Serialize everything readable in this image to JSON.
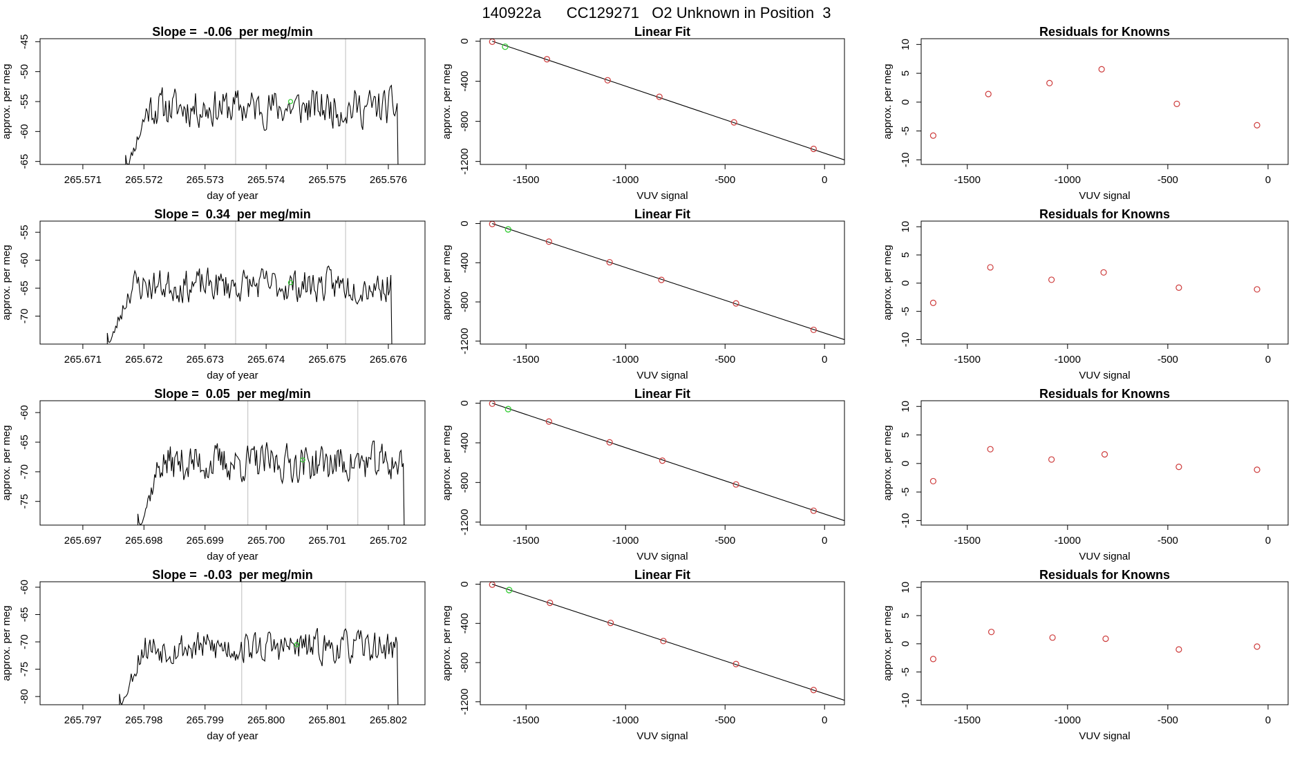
{
  "page_title": "140922a      CC129271   O2 Unknown in Position  3",
  "colors": {
    "trace": "#000000",
    "known": "#cd3a3a",
    "unknown": "#33cc33",
    "vline": "#c8c8c8"
  },
  "chart_data": [
    {
      "type": "line",
      "panel": "timeseries",
      "title": "Slope =  -0.06  per meg/min",
      "xlabel": "day of year",
      "ylabel": "approx. per meg",
      "xlim": [
        265.5703,
        265.5766
      ],
      "ylim": [
        -65.5,
        -44.5
      ],
      "xticks": [
        265.571,
        265.572,
        265.573,
        265.574,
        265.575,
        265.576
      ],
      "xtick_labels": [
        "265.571",
        "265.572",
        "265.573",
        "265.574",
        "265.575",
        "265.576"
      ],
      "yticks": [
        -65,
        -60,
        -55,
        -50,
        -45
      ],
      "yticks_labels": [
        "-65",
        "-60",
        "-55",
        "-50",
        "-45"
      ],
      "data_start": 265.5717,
      "data_end": 265.5762,
      "trace_mean": -56,
      "trace_amplitude": 3.2,
      "vlines": [
        265.5735,
        265.5753
      ],
      "unknown_point": {
        "x": 265.5744,
        "y": -55
      },
      "seed": 11
    },
    {
      "type": "scatter",
      "panel": "linear_fit",
      "title": "Linear Fit",
      "xlabel": "VUV signal",
      "ylabel": "approx. per meg",
      "xlim": [
        -1730,
        100
      ],
      "ylim": [
        -1230,
        25
      ],
      "xticks": [
        -1500,
        -1000,
        -500,
        0
      ],
      "xtick_labels": [
        "-1500",
        "-1000",
        "-500",
        "0"
      ],
      "yticks": [
        0,
        -400,
        -800,
        -1200
      ],
      "ytick_labels": [
        "0",
        "-400",
        "-800",
        "-1200"
      ],
      "fit_line": [
        [
          -1670,
          0
        ],
        [
          100,
          -1185
        ]
      ],
      "knowns": [
        [
          -1670,
          -5
        ],
        [
          -1395,
          -180
        ],
        [
          -1090,
          -390
        ],
        [
          -830,
          -555
        ],
        [
          -455,
          -810
        ],
        [
          -55,
          -1075
        ]
      ],
      "unknown": [
        -1605,
        -55
      ]
    },
    {
      "type": "scatter",
      "panel": "residuals",
      "title": "Residuals for Knowns",
      "xlabel": "VUV signal",
      "ylabel": "approx. per meg",
      "xlim": [
        -1730,
        100
      ],
      "ylim": [
        -10.8,
        11
      ],
      "xticks": [
        -1500,
        -1000,
        -500,
        0
      ],
      "xtick_labels": [
        "-1500",
        "-1000",
        "-500",
        "0"
      ],
      "yticks": [
        10,
        5,
        0,
        -5,
        -10
      ],
      "ytick_labels": [
        "10",
        "5",
        "0",
        "-5",
        "-10"
      ],
      "points": [
        [
          -1670,
          -5.8
        ],
        [
          -1395,
          1.4
        ],
        [
          -1090,
          3.3
        ],
        [
          -830,
          5.7
        ],
        [
          -455,
          -0.3
        ],
        [
          -55,
          -4
        ]
      ]
    },
    {
      "type": "line",
      "panel": "timeseries",
      "title": "Slope =  0.34  per meg/min",
      "xlabel": "day of year",
      "ylabel": "approx. per meg",
      "xlim": [
        265.6703,
        265.6766
      ],
      "ylim": [
        -75,
        -53
      ],
      "xticks": [
        265.671,
        265.672,
        265.673,
        265.674,
        265.675,
        265.676
      ],
      "xtick_labels": [
        "265.671",
        "265.672",
        "265.673",
        "265.674",
        "265.675",
        "265.676"
      ],
      "yticks": [
        -70,
        -65,
        -60,
        -55
      ],
      "yticks_labels": [
        "-70",
        "-65",
        "-60",
        "-55"
      ],
      "data_start": 265.6714,
      "data_end": 265.6761,
      "trace_mean": -64.5,
      "trace_amplitude": 3.0,
      "vlines": [
        265.6735,
        265.6753
      ],
      "unknown_point": {
        "x": 265.6744,
        "y": -64
      },
      "seed": 23
    },
    {
      "type": "scatter",
      "panel": "linear_fit",
      "title": "Linear Fit",
      "xlabel": "VUV signal",
      "ylabel": "approx. per meg",
      "xlim": [
        -1730,
        100
      ],
      "ylim": [
        -1230,
        25
      ],
      "xticks": [
        -1500,
        -1000,
        -500,
        0
      ],
      "xtick_labels": [
        "-1500",
        "-1000",
        "-500",
        "0"
      ],
      "yticks": [
        0,
        -400,
        -800,
        -1200
      ],
      "ytick_labels": [
        "0",
        "-400",
        "-800",
        "-1200"
      ],
      "fit_line": [
        [
          -1670,
          0
        ],
        [
          100,
          -1185
        ]
      ],
      "knowns": [
        [
          -1670,
          -5
        ],
        [
          -1385,
          -185
        ],
        [
          -1080,
          -395
        ],
        [
          -820,
          -575
        ],
        [
          -445,
          -815
        ],
        [
          -55,
          -1085
        ]
      ],
      "unknown": [
        -1590,
        -60
      ]
    },
    {
      "type": "scatter",
      "panel": "residuals",
      "title": "Residuals for Knowns",
      "xlabel": "VUV signal",
      "ylabel": "approx. per meg",
      "xlim": [
        -1730,
        100
      ],
      "ylim": [
        -10.8,
        11
      ],
      "xticks": [
        -1500,
        -1000,
        -500,
        0
      ],
      "xtick_labels": [
        "-1500",
        "-1000",
        "-500",
        "0"
      ],
      "yticks": [
        10,
        5,
        0,
        -5,
        -10
      ],
      "ytick_labels": [
        "10",
        "5",
        "0",
        "-5",
        "-10"
      ],
      "points": [
        [
          -1670,
          -3.5
        ],
        [
          -1385,
          2.8
        ],
        [
          -1080,
          0.6
        ],
        [
          -820,
          1.9
        ],
        [
          -445,
          -0.8
        ],
        [
          -55,
          -1.1
        ]
      ]
    },
    {
      "type": "line",
      "panel": "timeseries",
      "title": "Slope =  0.05  per meg/min",
      "xlabel": "day of year",
      "ylabel": "approx. per meg",
      "xlim": [
        265.6963,
        265.7026
      ],
      "ylim": [
        -79,
        -58
      ],
      "xticks": [
        265.697,
        265.698,
        265.699,
        265.7,
        265.701,
        265.702
      ],
      "xtick_labels": [
        "265.697",
        "265.698",
        "265.699",
        "265.700",
        "265.701",
        "265.702"
      ],
      "yticks": [
        -75,
        -70,
        -65,
        -60
      ],
      "yticks_labels": [
        "-75",
        "-70",
        "-65",
        "-60"
      ],
      "data_start": 265.6979,
      "data_end": 265.7023,
      "trace_mean": -68.5,
      "trace_amplitude": 3.2,
      "vlines": [
        265.6997,
        265.7015
      ],
      "unknown_point": {
        "x": 265.7006,
        "y": -68
      },
      "seed": 37
    },
    {
      "type": "scatter",
      "panel": "linear_fit",
      "title": "Linear Fit",
      "xlabel": "VUV signal",
      "ylabel": "approx. per meg",
      "xlim": [
        -1730,
        100
      ],
      "ylim": [
        -1230,
        25
      ],
      "xticks": [
        -1500,
        -1000,
        -500,
        0
      ],
      "xtick_labels": [
        "-1500",
        "-1000",
        "-500",
        "0"
      ],
      "yticks": [
        0,
        -400,
        -800,
        -1200
      ],
      "ytick_labels": [
        "0",
        "-400",
        "-800",
        "-1200"
      ],
      "fit_line": [
        [
          -1670,
          0
        ],
        [
          100,
          -1185
        ]
      ],
      "knowns": [
        [
          -1670,
          -5
        ],
        [
          -1385,
          -185
        ],
        [
          -1080,
          -395
        ],
        [
          -815,
          -580
        ],
        [
          -445,
          -820
        ],
        [
          -55,
          -1085
        ]
      ],
      "unknown": [
        -1590,
        -60
      ]
    },
    {
      "type": "scatter",
      "panel": "residuals",
      "title": "Residuals for Knowns",
      "xlabel": "VUV signal",
      "ylabel": "approx. per meg",
      "xlim": [
        -1730,
        100
      ],
      "ylim": [
        -10.8,
        11
      ],
      "xticks": [
        -1500,
        -1000,
        -500,
        0
      ],
      "xtick_labels": [
        "-1500",
        "-1000",
        "-500",
        "0"
      ],
      "yticks": [
        10,
        5,
        0,
        -5,
        -10
      ],
      "ytick_labels": [
        "10",
        "5",
        "0",
        "-5",
        "-10"
      ],
      "points": [
        [
          -1670,
          -3.1
        ],
        [
          -1385,
          2.5
        ],
        [
          -1080,
          0.7
        ],
        [
          -815,
          1.6
        ],
        [
          -445,
          -0.6
        ],
        [
          -55,
          -1.1
        ]
      ]
    },
    {
      "type": "line",
      "panel": "timeseries",
      "title": "Slope =  -0.03  per meg/min",
      "xlabel": "day of year",
      "ylabel": "approx. per meg",
      "xlim": [
        265.7963,
        265.8026
      ],
      "ylim": [
        -81.5,
        -59
      ],
      "xticks": [
        265.797,
        265.798,
        265.799,
        265.8,
        265.801,
        265.802
      ],
      "xtick_labels": [
        "265.797",
        "265.798",
        "265.799",
        "265.800",
        "265.801",
        "265.802"
      ],
      "yticks": [
        -80,
        -75,
        -70,
        -65,
        -60
      ],
      "yticks_labels": [
        "-80",
        "-75",
        "-70",
        "-65",
        "-60"
      ],
      "data_start": 265.7976,
      "data_end": 265.8022,
      "trace_mean": -71,
      "trace_amplitude": 3.0,
      "vlines": [
        265.7996,
        265.8013
      ],
      "unknown_point": {
        "x": 265.8005,
        "y": -70.5
      },
      "seed": 53
    },
    {
      "type": "scatter",
      "panel": "linear_fit",
      "title": "Linear Fit",
      "xlabel": "VUV signal",
      "ylabel": "approx. per meg",
      "xlim": [
        -1730,
        100
      ],
      "ylim": [
        -1230,
        25
      ],
      "xticks": [
        -1500,
        -1000,
        -500,
        0
      ],
      "xtick_labels": [
        "-1500",
        "-1000",
        "-500",
        "0"
      ],
      "yticks": [
        0,
        -400,
        -800,
        -1200
      ],
      "ytick_labels": [
        "0",
        "-400",
        "-800",
        "-1200"
      ],
      "fit_line": [
        [
          -1670,
          0
        ],
        [
          100,
          -1185
        ]
      ],
      "knowns": [
        [
          -1670,
          -5
        ],
        [
          -1380,
          -190
        ],
        [
          -1075,
          -395
        ],
        [
          -810,
          -580
        ],
        [
          -445,
          -815
        ],
        [
          -55,
          -1080
        ]
      ],
      "unknown": [
        -1585,
        -60
      ]
    },
    {
      "type": "scatter",
      "panel": "residuals",
      "title": "Residuals for Knowns",
      "xlabel": "VUV signal",
      "ylabel": "approx. per meg",
      "xlim": [
        -1730,
        100
      ],
      "ylim": [
        -10.8,
        11
      ],
      "xticks": [
        -1500,
        -1000,
        -500,
        0
      ],
      "xtick_labels": [
        "-1500",
        "-1000",
        "-500",
        "0"
      ],
      "yticks": [
        10,
        5,
        0,
        -5,
        -10
      ],
      "ytick_labels": [
        "10",
        "5",
        "0",
        "-5",
        "-10"
      ],
      "points": [
        [
          -1670,
          -2.7
        ],
        [
          -1380,
          2.1
        ],
        [
          -1075,
          1.1
        ],
        [
          -810,
          0.9
        ],
        [
          -445,
          -1
        ],
        [
          -55,
          -0.5
        ]
      ]
    }
  ]
}
